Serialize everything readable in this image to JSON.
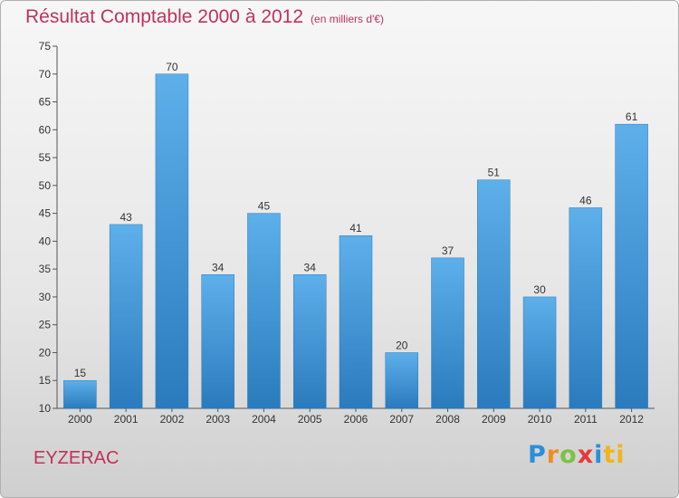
{
  "chart_data": {
    "type": "bar",
    "title": "Résultat Comptable 2000 à 2012",
    "subtitle": "(en milliers d'€)",
    "categories": [
      "2000",
      "2001",
      "2002",
      "2003",
      "2004",
      "2005",
      "2006",
      "2007",
      "2008",
      "2009",
      "2010",
      "2011",
      "2012"
    ],
    "values": [
      15,
      43,
      70,
      34,
      45,
      34,
      41,
      20,
      37,
      51,
      30,
      46,
      61
    ],
    "ylim": [
      10,
      75
    ],
    "yticks": [
      10,
      15,
      20,
      25,
      30,
      35,
      40,
      45,
      50,
      55,
      60,
      65,
      70,
      75
    ],
    "xlabel": "",
    "ylabel": "",
    "grid": false,
    "bar_color": "#3c96d8"
  },
  "commune": "EYZERAC",
  "logo": {
    "letters": [
      "P",
      "r",
      "o",
      "x",
      "i",
      "ti"
    ]
  }
}
